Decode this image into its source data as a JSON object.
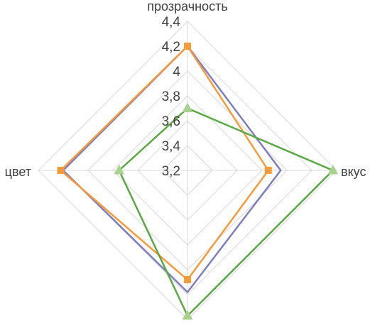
{
  "chart_data": {
    "type": "radar",
    "axes": [
      "прозрачность",
      "вкус",
      "",
      "цвет"
    ],
    "rmin": 3.2,
    "rmax": 4.4,
    "ticks": [
      "3,2",
      "3,4",
      "3,6",
      "3,8",
      "4",
      "4,2",
      "4,4"
    ],
    "tick_values": [
      3.2,
      3.4,
      3.6,
      3.8,
      4.0,
      4.2,
      4.4
    ],
    "grid": true,
    "series": [
      {
        "color": "#7f7fbf",
        "marker": "none",
        "values": [
          4.2,
          3.95,
          4.18,
          4.2
        ]
      },
      {
        "color": "#f79a3a",
        "marker": "square",
        "values": [
          4.2,
          3.85,
          4.08,
          4.22
        ]
      },
      {
        "color": "#5aa843",
        "marker": "triangle",
        "values": [
          3.7,
          4.37,
          4.37,
          3.75
        ]
      }
    ]
  }
}
